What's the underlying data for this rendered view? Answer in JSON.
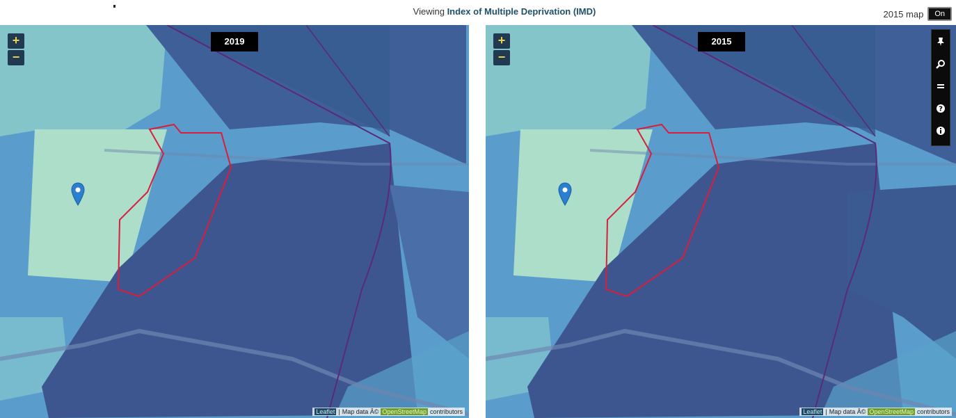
{
  "header": {
    "viewing_prefix": "Viewing",
    "viewing_title": "Index of Multiple Deprivation (IMD)",
    "toggle_label": "2015 map",
    "toggle_value": "On"
  },
  "maps": [
    {
      "year_label": "2019",
      "zoom_in": "+",
      "zoom_out": "−"
    },
    {
      "year_label": "2015",
      "zoom_in": "+",
      "zoom_out": "−"
    }
  ],
  "attribution": {
    "leaflet": "Leaflet",
    "sep": "|",
    "map_data": "Map data Â©",
    "osm": "OpenStreetMap",
    "contributors": "contributors"
  },
  "toolbar": {
    "icons": [
      "pin-icon",
      "search-icon",
      "list-icon",
      "help-icon",
      "info-icon"
    ]
  },
  "colors": {
    "boundary": "#d81e3c",
    "light_area": "#9fdcc3",
    "mid_area": "#5f9fc8",
    "dark_area": "#3e5c95",
    "pin": "#2b7fd1"
  }
}
